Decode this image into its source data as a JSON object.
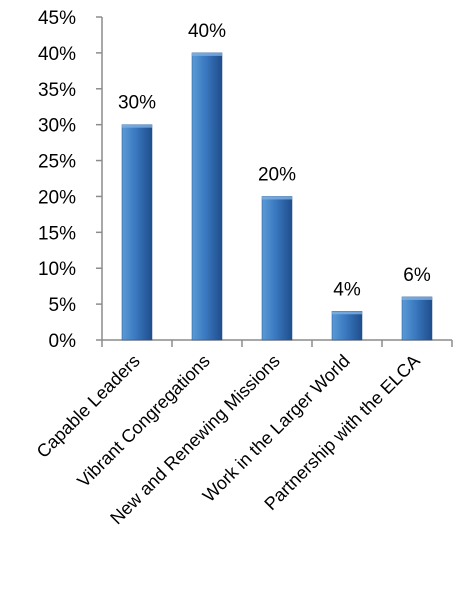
{
  "chart_data": {
    "type": "bar",
    "categories": [
      "Capable Leaders",
      "Vibrant Congregations",
      "New and Renewing Missions",
      "Work in the Larger World",
      "Partnership with the ELCA"
    ],
    "values": [
      30,
      40,
      20,
      4,
      6
    ],
    "data_labels": [
      "30%",
      "40%",
      "20%",
      "4%",
      "6%"
    ],
    "ylim": [
      0,
      45
    ],
    "yticks": [
      0,
      5,
      10,
      15,
      20,
      25,
      30,
      35,
      40,
      45
    ],
    "ytick_labels": [
      "0%",
      "5%",
      "10%",
      "15%",
      "20%",
      "25%",
      "30%",
      "35%",
      "40%",
      "45%"
    ],
    "grid": false,
    "legend": "none",
    "title": "",
    "xlabel": "",
    "ylabel": "",
    "colors": {
      "bar_light": "#5b9bd5",
      "bar_mid": "#3a78c0",
      "bar_dark": "#1f4e8c",
      "axis": "#8c8c8c"
    }
  }
}
